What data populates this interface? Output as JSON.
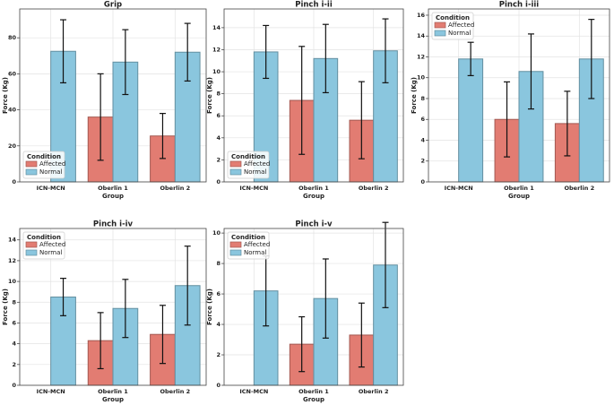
{
  "chart_data": [
    {
      "type": "bar",
      "title": "Grip",
      "xlabel": "Group",
      "ylabel": "Force (Kg)",
      "categories": [
        "ICN-MCN",
        "Oberlin 1",
        "Oberlin 2"
      ],
      "series": [
        {
          "name": "Affected",
          "color": "#e27c72",
          "values": [
            null,
            36,
            25.5
          ],
          "errors": [
            null,
            24,
            12.5
          ]
        },
        {
          "name": "Normal",
          "color": "#8ac6de",
          "values": [
            72.5,
            66.5,
            72
          ],
          "errors": [
            17.5,
            18,
            16
          ]
        }
      ],
      "ylim": [
        0,
        96
      ],
      "yticks": [
        0,
        20,
        40,
        60,
        80
      ],
      "grid": true,
      "legend": "lower left",
      "legend_title": "Condition"
    },
    {
      "type": "bar",
      "title": "Pinch i-ii",
      "xlabel": "Group",
      "ylabel": "Force (Kg)",
      "categories": [
        "ICN-MCN",
        "Oberlin 1",
        "Oberlin 2"
      ],
      "series": [
        {
          "name": "Affected",
          "color": "#e27c72",
          "values": [
            null,
            7.4,
            5.6
          ],
          "errors": [
            null,
            4.9,
            3.5
          ]
        },
        {
          "name": "Normal",
          "color": "#8ac6de",
          "values": [
            11.8,
            11.2,
            11.9
          ],
          "errors": [
            2.4,
            3.1,
            2.9
          ]
        }
      ],
      "ylim": [
        0,
        15.7
      ],
      "yticks": [
        0,
        2,
        4,
        6,
        8,
        10,
        12,
        14
      ],
      "grid": true,
      "legend": "lower left",
      "legend_title": "Condition"
    },
    {
      "type": "bar",
      "title": "Pinch i-iii",
      "xlabel": "Group",
      "ylabel": "Force (Kg)",
      "categories": [
        "ICN-MCN",
        "Oberlin 1",
        "Oberlin 2"
      ],
      "series": [
        {
          "name": "Affected",
          "color": "#e27c72",
          "values": [
            null,
            6,
            5.6
          ],
          "errors": [
            null,
            3.6,
            3.1
          ]
        },
        {
          "name": "Normal",
          "color": "#8ac6de",
          "values": [
            11.8,
            10.6,
            11.8
          ],
          "errors": [
            1.6,
            3.6,
            3.8
          ]
        }
      ],
      "ylim": [
        0,
        16.6
      ],
      "yticks": [
        0,
        2,
        4,
        6,
        8,
        10,
        12,
        14,
        16
      ],
      "grid": true,
      "legend": "upper left",
      "legend_title": "Condition"
    },
    {
      "type": "bar",
      "title": "Pinch i-iv",
      "xlabel": "Group",
      "ylabel": "Force (Kg)",
      "categories": [
        "ICN-MCN",
        "Oberlin 1",
        "Oberlin 2"
      ],
      "series": [
        {
          "name": "Affected",
          "color": "#e27c72",
          "values": [
            null,
            4.3,
            4.9
          ],
          "errors": [
            null,
            2.7,
            2.8
          ]
        },
        {
          "name": "Normal",
          "color": "#8ac6de",
          "values": [
            8.5,
            7.4,
            9.6
          ],
          "errors": [
            1.8,
            2.8,
            3.8
          ]
        }
      ],
      "ylim": [
        0,
        15.1
      ],
      "yticks": [
        0,
        2,
        4,
        6,
        8,
        10,
        12,
        14
      ],
      "grid": true,
      "legend": "upper left",
      "legend_title": "Condition"
    },
    {
      "type": "bar",
      "title": "Pinch i-v",
      "xlabel": "Group",
      "ylabel": "Force (Kg)",
      "categories": [
        "ICN-MCN",
        "Oberlin 1",
        "Oberlin 2"
      ],
      "series": [
        {
          "name": "Affected",
          "color": "#e27c72",
          "values": [
            null,
            2.7,
            3.3
          ],
          "errors": [
            null,
            1.8,
            2.1
          ]
        },
        {
          "name": "Normal",
          "color": "#8ac6de",
          "values": [
            6.2,
            5.7,
            7.9
          ],
          "errors": [
            2.3,
            2.6,
            2.8
          ]
        }
      ],
      "ylim": [
        0,
        10.3
      ],
      "yticks": [
        0,
        2,
        4,
        6,
        8,
        10
      ],
      "grid": true,
      "legend": "upper left",
      "legend_title": "Condition"
    }
  ]
}
